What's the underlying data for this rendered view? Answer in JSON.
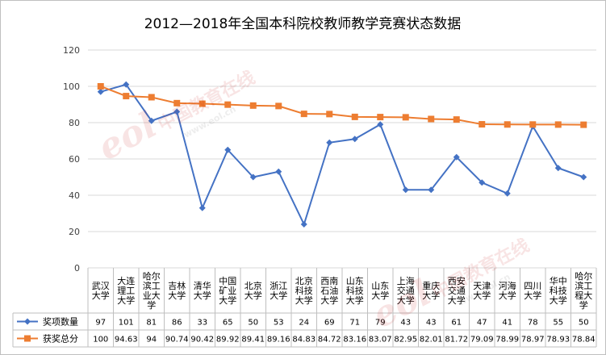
{
  "chart_data": {
    "type": "line",
    "title": "2012—2018年全国本科院校教师教学竞赛状态数据",
    "categories": [
      "武汉大学",
      "大连理工大学",
      "哈尔滨工业大学",
      "吉林大学",
      "清华大学",
      "中国矿业大学",
      "北京大学",
      "浙江大学",
      "北京科技大学",
      "西南石油大学",
      "山东科技大学",
      "山东大学",
      "上海交通大学",
      "重庆大学",
      "西安交通大学",
      "天津大学",
      "河海大学",
      "四川大学",
      "华中科技大学",
      "哈尔滨工程大学"
    ],
    "category_lines": [
      [
        "武汉",
        "大学"
      ],
      [
        "大连",
        "理工",
        "大学"
      ],
      [
        "哈尔",
        "滨工",
        "业大",
        "学"
      ],
      [
        "吉林",
        "大学"
      ],
      [
        "清华",
        "大学"
      ],
      [
        "中国",
        "矿业",
        "大学"
      ],
      [
        "北京",
        "大学"
      ],
      [
        "浙江",
        "大学"
      ],
      [
        "北京",
        "科技",
        "大学"
      ],
      [
        "西南",
        "石油",
        "大学"
      ],
      [
        "山东",
        "科技",
        "大学"
      ],
      [
        "山东",
        "大学"
      ],
      [
        "上海",
        "交通",
        "大学"
      ],
      [
        "重庆",
        "大学"
      ],
      [
        "西安",
        "交通",
        "大学"
      ],
      [
        "天津",
        "大学"
      ],
      [
        "河海",
        "大学"
      ],
      [
        "四川",
        "大学"
      ],
      [
        "华中",
        "科技",
        "大学"
      ],
      [
        "哈尔",
        "滨工",
        "程大",
        "学"
      ]
    ],
    "series": [
      {
        "name": "奖项数量",
        "color": "#4472c4",
        "marker": "diamond",
        "values": [
          97,
          101,
          81,
          86,
          33,
          65,
          50,
          53,
          24,
          69,
          71,
          79,
          43,
          43,
          61,
          47,
          41,
          78,
          55,
          50
        ],
        "labels": [
          "97",
          "101",
          "81",
          "86",
          "33",
          "65",
          "50",
          "53",
          "24",
          "69",
          "71",
          "79",
          "43",
          "43",
          "61",
          "47",
          "41",
          "78",
          "55",
          "50"
        ]
      },
      {
        "name": "获奖总分",
        "color": "#ed7d31",
        "marker": "square",
        "values": [
          100,
          94.63,
          94,
          90.74,
          90.42,
          89.92,
          89.41,
          89.16,
          84.83,
          84.72,
          83.16,
          83.07,
          82.95,
          82.01,
          81.72,
          79.09,
          78.99,
          78.97,
          78.93,
          78.84
        ],
        "labels": [
          "100",
          "94.63",
          "94",
          "90.74",
          "90.42",
          "89.92",
          "89.41",
          "89.16",
          "84.83",
          "84.72",
          "83.16",
          "83.07",
          "82.95",
          "82.01",
          "81.72",
          "79.09",
          "78.99",
          "78.97",
          "78.93",
          "78.84"
        ]
      }
    ],
    "ylim": [
      0,
      120
    ],
    "yticks": [
      "0",
      "20",
      "40",
      "60",
      "80",
      "100",
      "120"
    ],
    "grid": true,
    "legend": "data-table-left",
    "xlabel": "",
    "ylabel": ""
  },
  "watermark": {
    "logo": "eol",
    "text": "中国教育在线",
    "url": "www.eol.cn"
  }
}
